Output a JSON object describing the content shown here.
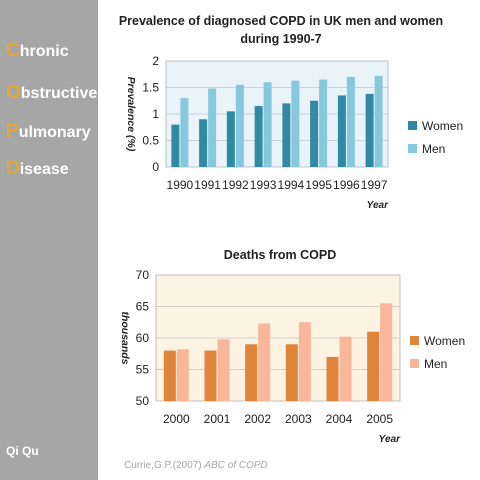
{
  "sidebar": {
    "acronym": [
      {
        "first": "C",
        "rest": "hronic"
      },
      {
        "first": "O",
        "rest": "bstructive"
      },
      {
        "first": "P",
        "rest": "ulmonary"
      },
      {
        "first": "D",
        "rest": "isease"
      }
    ],
    "author": "Qi Qu"
  },
  "citation": {
    "author": "Currie,G.P.(2007)",
    "title": "ABC of COPD"
  },
  "colors": {
    "sidebar_bg": "#a6a6a6",
    "acronym_letter": "#e0a83a",
    "chart1_women": "#2f8aa3",
    "chart1_men": "#86c8dc",
    "chart1_bg": "#eaf2fa",
    "chart2_women": "#e0843a",
    "chart2_men": "#f8b69a",
    "chart2_bg": "#fdf3e3"
  },
  "chart_data": [
    {
      "type": "bar",
      "title_lines": [
        "Prevalence of diagnosed COPD in UK men and women",
        "during 1990-7"
      ],
      "ylabel": "Prevalence (%)",
      "xlabel": "Year",
      "categories": [
        "1990",
        "1991",
        "1992",
        "1993",
        "1994",
        "1995",
        "1996",
        "1997"
      ],
      "series": [
        {
          "name": "Women",
          "values": [
            0.8,
            0.9,
            1.05,
            1.15,
            1.2,
            1.25,
            1.35,
            1.38
          ]
        },
        {
          "name": "Men",
          "values": [
            1.3,
            1.48,
            1.55,
            1.6,
            1.63,
            1.65,
            1.7,
            1.72
          ]
        }
      ],
      "yticks": [
        0,
        0.5,
        1,
        1.5,
        2
      ],
      "ytick_labels": [
        "0",
        "0.5",
        "1",
        "1.5",
        "2"
      ],
      "ylim": [
        0,
        2
      ],
      "grid": true,
      "legend": "right"
    },
    {
      "type": "bar",
      "title_lines": [
        "Deaths from COPD"
      ],
      "ylabel": "thousands",
      "xlabel": "Year",
      "categories": [
        "2000",
        "2001",
        "2002",
        "2003",
        "2004",
        "2005"
      ],
      "series": [
        {
          "name": "Women",
          "values": [
            58,
            58,
            59,
            59,
            57,
            61
          ]
        },
        {
          "name": "Men",
          "values": [
            58.2,
            59.8,
            62.3,
            62.5,
            60.2,
            65.5
          ]
        }
      ],
      "yticks": [
        50,
        55,
        60,
        65,
        70
      ],
      "ytick_labels": [
        "50",
        "55",
        "60",
        "65",
        "70"
      ],
      "ylim": [
        50,
        70
      ],
      "grid": true,
      "legend": "right"
    }
  ]
}
